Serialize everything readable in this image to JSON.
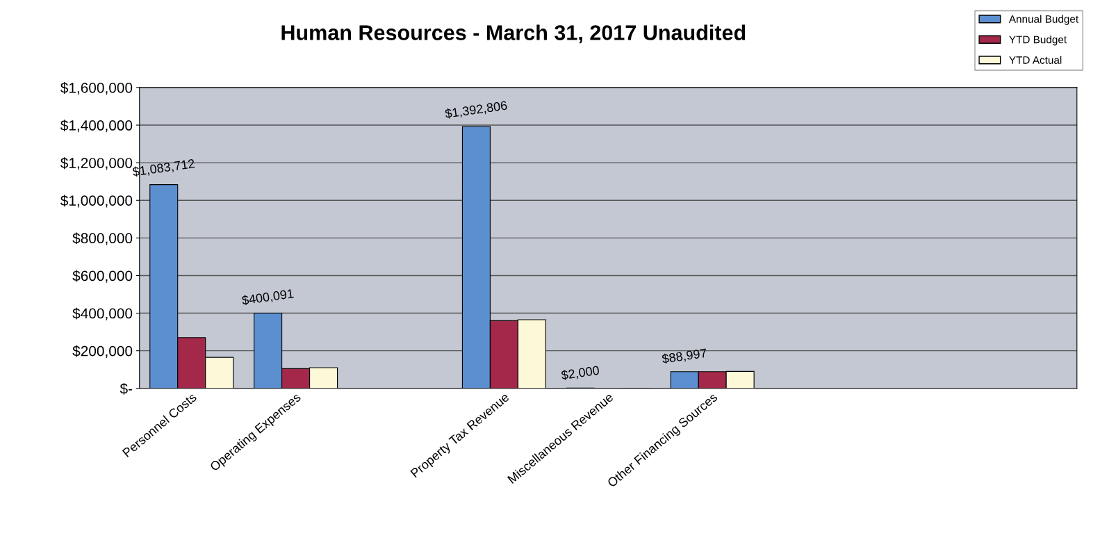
{
  "chart_data": {
    "type": "bar",
    "title": "Human Resources - March 31, 2017 Unaudited",
    "categories": [
      "Personnel Costs",
      "Operating Expenses",
      null,
      "Property Tax Revenue",
      "Miscellaneous Revenue",
      "Other Financing Sources",
      null,
      null,
      null
    ],
    "series": [
      {
        "name": "Annual Budget",
        "color": "#5b8fd0",
        "values": [
          1083712,
          400091,
          null,
          1392806,
          2000,
          88997,
          null,
          null,
          null
        ],
        "value_labels": [
          "$1,083,712",
          "$400,091",
          null,
          "$1,392,806",
          "$2,000",
          "$88,997",
          null,
          null,
          null
        ]
      },
      {
        "name": "YTD Budget",
        "color": "#a3284a",
        "values": [
          270000,
          105000,
          null,
          360000,
          null,
          89000,
          null,
          null,
          null
        ]
      },
      {
        "name": "YTD Actual",
        "color": "#fdf8d8",
        "values": [
          165000,
          110000,
          null,
          365000,
          0,
          90000,
          null,
          null,
          null
        ]
      }
    ],
    "ylim": [
      0,
      1600000
    ],
    "yticks": [
      {
        "value": 0,
        "label": "$-"
      },
      {
        "value": 200000,
        "label": "$200,000"
      },
      {
        "value": 400000,
        "label": "$400,000"
      },
      {
        "value": 600000,
        "label": "$600,000"
      },
      {
        "value": 800000,
        "label": "$800,000"
      },
      {
        "value": 1000000,
        "label": "$1,000,000"
      },
      {
        "value": 1200000,
        "label": "$1,200,000"
      },
      {
        "value": 1400000,
        "label": "$1,400,000"
      },
      {
        "value": 1600000,
        "label": "$1,600,000"
      }
    ],
    "grid": "y",
    "legend": "top right"
  }
}
